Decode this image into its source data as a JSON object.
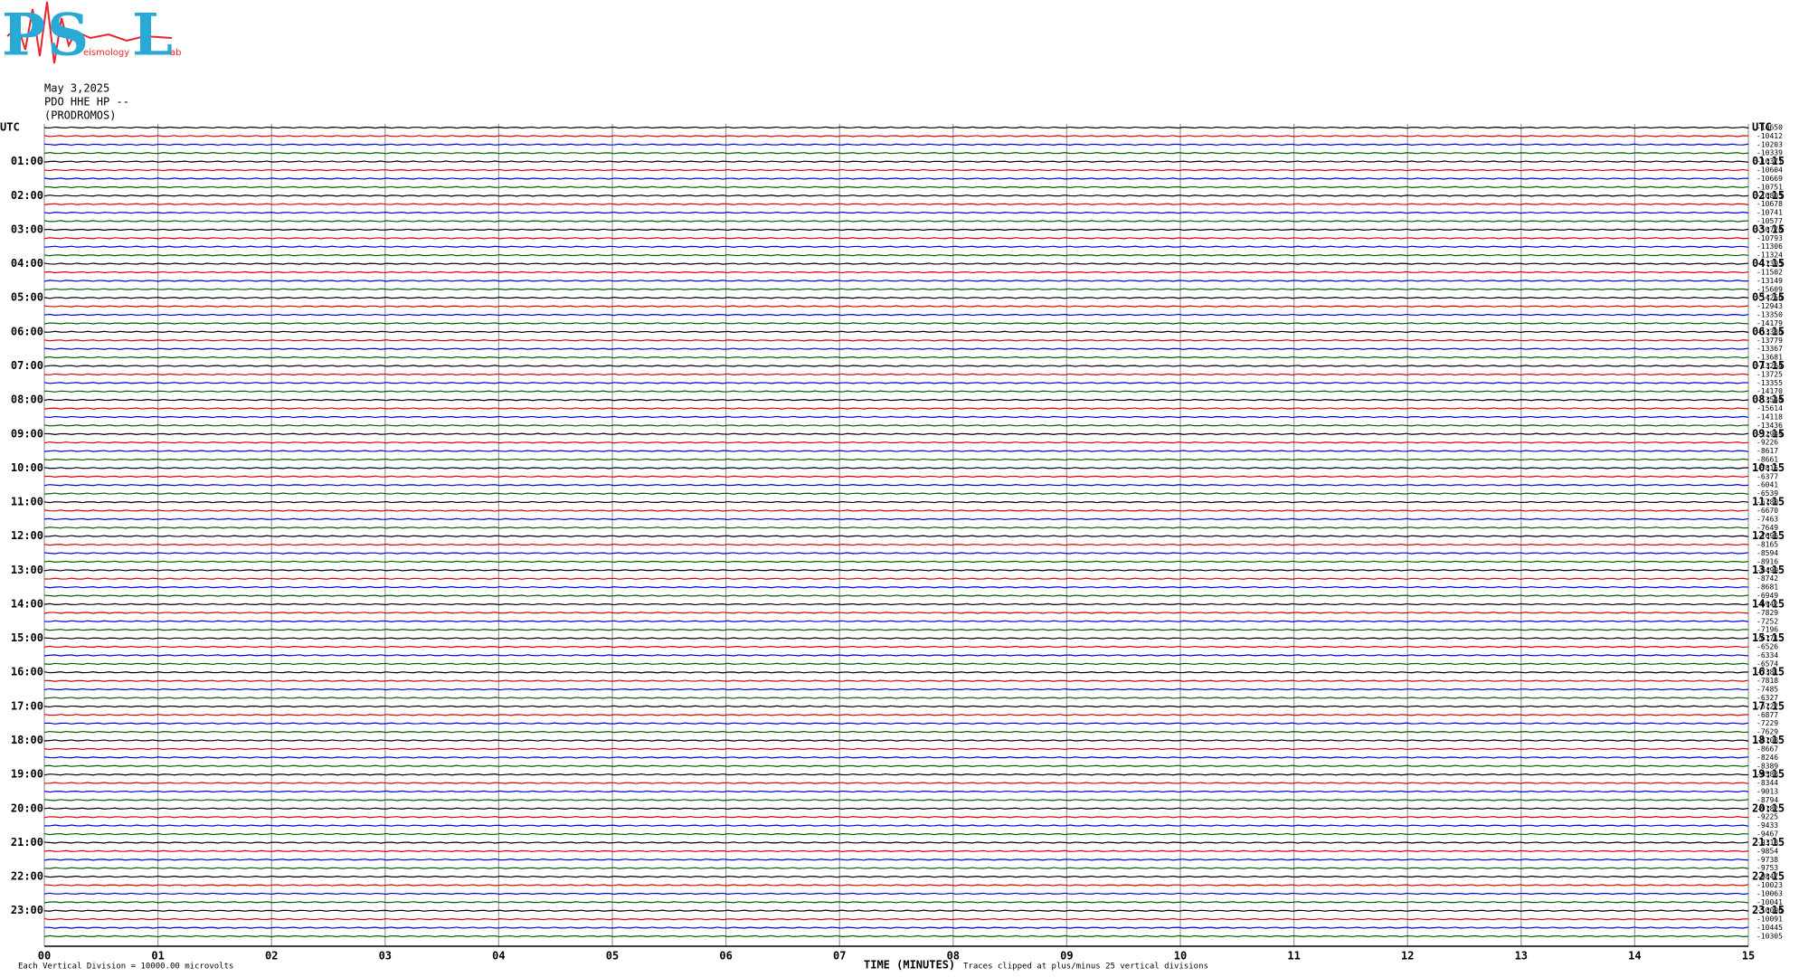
{
  "logo": {
    "letters": [
      "P",
      "S",
      "L"
    ],
    "words": [
      "eismology",
      "ab"
    ]
  },
  "header": {
    "date": "May 3,2025",
    "channel": "PDO HHE HP --",
    "station": "(PRODROMOS)"
  },
  "left_labels": [
    "UTC",
    "01:00",
    "02:00",
    "03:00",
    "04:00",
    "05:00",
    "06:00",
    "07:00",
    "08:00",
    "09:00",
    "10:00",
    "11:00",
    "12:00",
    "13:00",
    "14:00",
    "15:00",
    "16:00",
    "17:00",
    "18:00",
    "19:00",
    "20:00",
    "21:00",
    "22:00",
    "23:00"
  ],
  "right_labels": [
    "UTC",
    "01:15",
    "02:15",
    "03:15",
    "04:15",
    "05:15",
    "06:15",
    "07:15",
    "08:15",
    "09:15",
    "10:15",
    "11:15",
    "12:15",
    "13:15",
    "14:15",
    "15:15",
    "16:15",
    "17:15",
    "18:15",
    "19:15",
    "20:15",
    "21:15",
    "22:15",
    "23:15"
  ],
  "trace_offsets": [
    -10650,
    -10412,
    -10203,
    -10339,
    -10371,
    -10604,
    -10669,
    -10751,
    -10805,
    -10678,
    -10741,
    -10577,
    -10770,
    -10793,
    -11306,
    -11324,
    -11395,
    -11502,
    -13149,
    -15609,
    -14256,
    -12943,
    -13350,
    -14179,
    -13336,
    -13779,
    -13367,
    -13681,
    -13264,
    -13725,
    -13355,
    -14170,
    -13540,
    -15614,
    -14118,
    -13436,
    -12949,
    -9226,
    -8617,
    -8661,
    -7815,
    -6377,
    -6041,
    -6539,
    -6780,
    -6670,
    -7463,
    -7649,
    -7696,
    -8165,
    -8594,
    -8916,
    -8499,
    -8742,
    -8681,
    -6949,
    -6942,
    -7829,
    -7252,
    -7196,
    -6171,
    -6526,
    -6334,
    -6574,
    -7381,
    -7818,
    -7485,
    -6327,
    -6727,
    -6877,
    -7229,
    -7629,
    -8108,
    -8667,
    -8246,
    -8389,
    -8588,
    -8344,
    -9013,
    -8794,
    -9182,
    -9225,
    -9433,
    -9467,
    -9318,
    -9854,
    -9738,
    -9753,
    -9847,
    -10023,
    -10063,
    -10041,
    -10096,
    -10091,
    -10445,
    -10305
  ],
  "x_labels": [
    "00",
    "01",
    "02",
    "03",
    "04",
    "05",
    "06",
    "07",
    "08",
    "09",
    "10",
    "11",
    "12",
    "13",
    "14",
    "15"
  ],
  "footer": {
    "scale": "Each Vertical Division = 10000.00 microvolts",
    "axis_title": "TIME (MINUTES)",
    "clip": "Traces clipped at plus/minus 25 vertical divisions"
  }
}
